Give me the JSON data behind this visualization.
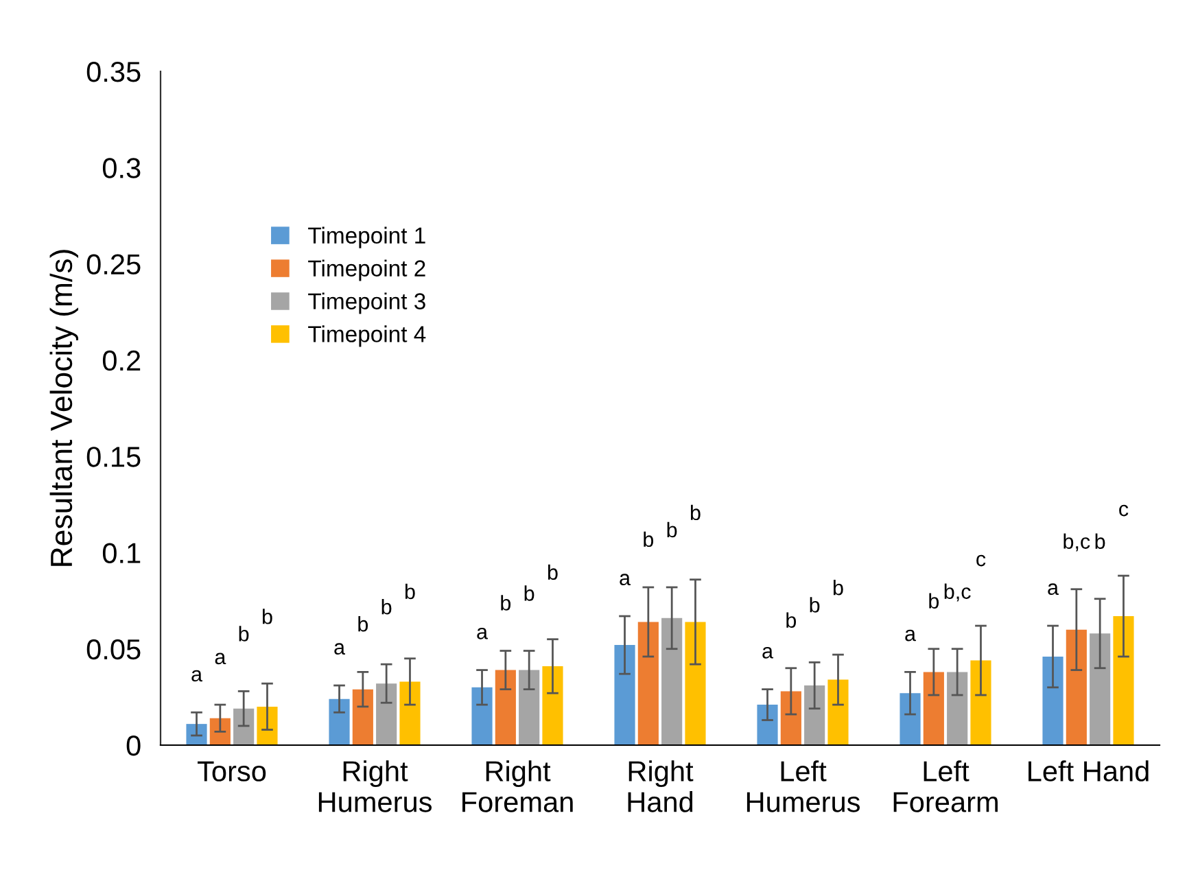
{
  "chart_data": {
    "type": "bar",
    "ylabel": "Resultant Velocity (m/s)",
    "categories": [
      "Torso",
      "Right\nHumerus",
      "Right\nForeman",
      "Right\nHand",
      "Left\nHumerus",
      "Left\nForearm",
      "Left Hand"
    ],
    "series": [
      {
        "name": "Timepoint 1",
        "color": "#5b9bd5",
        "values": [
          0.011,
          0.024,
          0.03,
          0.052,
          0.021,
          0.027,
          0.046
        ],
        "errors": [
          0.006,
          0.007,
          0.009,
          0.015,
          0.008,
          0.011,
          0.016
        ]
      },
      {
        "name": "Timepoint 2",
        "color": "#ed7d31",
        "values": [
          0.014,
          0.029,
          0.039,
          0.064,
          0.028,
          0.038,
          0.06
        ],
        "errors": [
          0.007,
          0.009,
          0.01,
          0.018,
          0.012,
          0.012,
          0.021
        ]
      },
      {
        "name": "Timepoint 3",
        "color": "#a5a5a5",
        "values": [
          0.019,
          0.032,
          0.039,
          0.066,
          0.031,
          0.038,
          0.058
        ],
        "errors": [
          0.009,
          0.01,
          0.01,
          0.016,
          0.012,
          0.012,
          0.018
        ]
      },
      {
        "name": "Timepoint 4",
        "color": "#ffc000",
        "values": [
          0.02,
          0.033,
          0.041,
          0.064,
          0.034,
          0.044,
          0.067
        ],
        "errors": [
          0.012,
          0.012,
          0.014,
          0.022,
          0.013,
          0.018,
          0.021
        ]
      }
    ],
    "ylim": [
      0,
      0.35
    ],
    "yticks": [
      {
        "value": 0,
        "label": "0"
      },
      0.05,
      {
        "value": 0.1,
        "label": "0.1"
      },
      0.15,
      {
        "value": 0.2,
        "label": "0.2"
      },
      0.25,
      {
        "value": 0.3,
        "label": "0.3"
      },
      0.35
    ],
    "grid": false,
    "legend": "top left",
    "annotations": [
      "a",
      "a",
      "b",
      "b",
      "a",
      "b",
      "b",
      "b",
      "a",
      "b",
      "b",
      "b",
      "a",
      "b",
      "b",
      "b",
      "a",
      "b",
      "b",
      "b",
      "a",
      "b",
      "b,c",
      "c",
      "a",
      "b,c",
      "b",
      "c"
    ]
  }
}
